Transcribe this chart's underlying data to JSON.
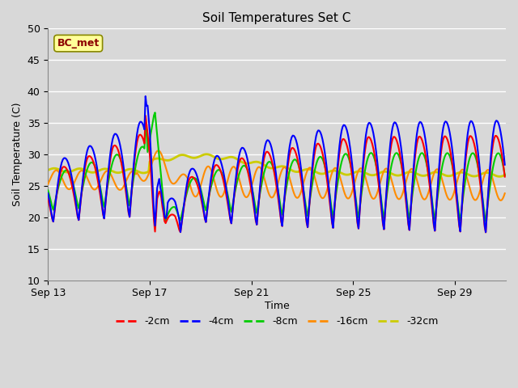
{
  "title": "Soil Temperatures Set C",
  "xlabel": "Time",
  "ylabel": "Soil Temperature (C)",
  "ylim": [
    10,
    50
  ],
  "yticks": [
    10,
    15,
    20,
    25,
    30,
    35,
    40,
    45,
    50
  ],
  "annotation_text": "BC_met",
  "annotation_color": "#8B0000",
  "annotation_bg": "#FFFF99",
  "line_colors": {
    "-2cm": "#FF0000",
    "-4cm": "#0000FF",
    "-8cm": "#00CC00",
    "-16cm": "#FF8C00",
    "-32cm": "#CCCC00"
  },
  "bg_color": "#D8D8D8",
  "grid_color": "#FFFFFF",
  "x_start_day": 13,
  "x_tick_days": [
    13,
    17,
    21,
    25,
    29
  ],
  "figsize": [
    6.4,
    4.8
  ],
  "dpi": 100
}
